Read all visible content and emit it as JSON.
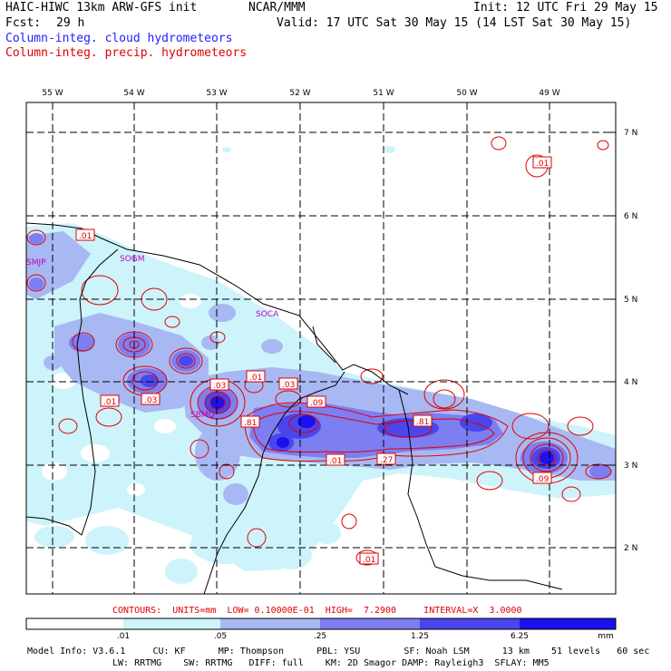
{
  "header": {
    "title": "HAIC-HIWC 13km ARW-GFS init",
    "org": "NCAR/MMM",
    "init": "Init: 12 UTC Fri 29 May 15",
    "fcst_label": "Fcst:",
    "fcst_value": "29 h",
    "valid": "Valid: 17 UTC Sat 30 May 15 (14 LST Sat 30 May 15)",
    "field_cloud": "Column-integ. cloud hydrometeors",
    "field_precip": "Column-integ. precip. hydrometeors",
    "color_cloud": "#2020ff",
    "color_precip": "#e00000"
  },
  "axes": {
    "lon_labels": [
      "55 W",
      "54 W",
      "53 W",
      "52 W",
      "51 W",
      "50 W",
      "49 W"
    ],
    "lat_labels": [
      "7 N",
      "6 N",
      "5 N",
      "4 N",
      "3 N",
      "2 N"
    ]
  },
  "places": [
    "SMJP",
    "SOGM",
    "SOCA",
    "SBMQ"
  ],
  "contour_labels": [
    ".01",
    ".01",
    ".01",
    ".03",
    ".01",
    ".03",
    ".03",
    ".09",
    ".81",
    ".81",
    ".27",
    ".01",
    ".09",
    ".01"
  ],
  "contours_info": "CONTOURS:  UNITS=mm  LOW= 0.10000E-01  HIGH=  7.2900     INTERVAL=X  3.0000",
  "colorbar": {
    "ticks": [
      ".01",
      ".05",
      ".25",
      "1.25",
      "6.25"
    ],
    "unit": "mm",
    "colors": [
      "#ffffff",
      "#cdf3fb",
      "#a8b8f2",
      "#7d7ef2",
      "#4a45ec",
      "#1e10ee"
    ]
  },
  "model_info": {
    "line1": "Model Info: V3.6.1     CU: KF      MP: Thompson      PBL: YSU        SF: Noah LSM      13 km    51 levels   60 sec",
    "line2": "LW: RRTMG    SW: RRTMG   DIFF: full    KM: 2D Smagor DAMP: Rayleigh3  SFLAY: MM5"
  }
}
